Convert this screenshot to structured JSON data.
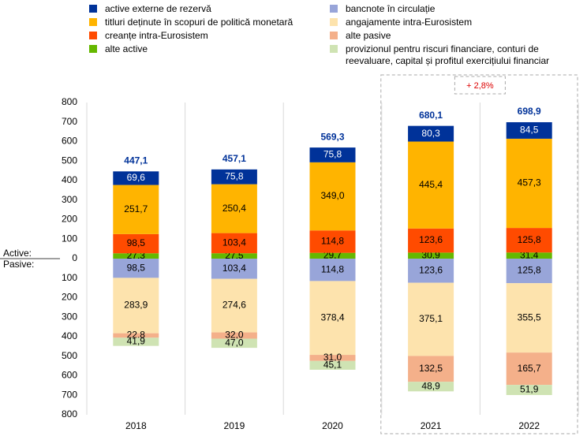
{
  "chart_data": {
    "type": "stacked-bar",
    "categories": [
      "2018",
      "2019",
      "2020",
      "2021",
      "2022"
    ],
    "series": [
      {
        "name": "alte active",
        "color": "#65b800",
        "values": [
          27.3,
          27.5,
          29.7,
          30.9,
          31.4
        ],
        "value_labels": [
          "27,3",
          "27,5",
          "29,7",
          "30,9",
          "31,4"
        ]
      },
      {
        "name": "creanțe intra-Eurosistem",
        "color": "#ff4b00",
        "values": [
          98.5,
          103.4,
          114.8,
          123.6,
          125.8
        ],
        "value_labels": [
          "98,5",
          "103,4",
          "114,8",
          "123,6",
          "125,8"
        ]
      },
      {
        "name": "titluri deținute în scopuri de politică monetară",
        "color": "#ffb400",
        "values": [
          251.7,
          250.4,
          349.0,
          445.4,
          457.3
        ],
        "value_labels": [
          "251,7",
          "250,4",
          "349,0",
          "445,4",
          "457,3"
        ]
      },
      {
        "name": "active externe de rezervă",
        "color": "#003299",
        "values": [
          69.6,
          75.8,
          75.8,
          80.3,
          84.5
        ],
        "value_labels": [
          "69,6",
          "75,8",
          "75,8",
          "80,3",
          "84,5"
        ]
      },
      {
        "name": "bancnote în circulație",
        "color": "#98a5d9",
        "values": [
          -98.5,
          -103.4,
          -114.8,
          -123.6,
          -125.8
        ],
        "value_labels": [
          "98,5",
          "103,4",
          "114,8",
          "123,6",
          "125,8"
        ]
      },
      {
        "name": "angajamente intra-Eurosistem",
        "color": "#fde3ad",
        "values": [
          -283.9,
          -274.6,
          -378.4,
          -375.1,
          -355.5
        ],
        "value_labels": [
          "283,9",
          "274,6",
          "378,4",
          "375,1",
          "355,5"
        ]
      },
      {
        "name": "alte pasive",
        "color": "#f4b08a",
        "values": [
          -22.8,
          -32.0,
          -31.0,
          -132.5,
          -165.7
        ],
        "value_labels": [
          "22,8",
          "32,0",
          "31,0",
          "132,5",
          "165,7"
        ]
      },
      {
        "name": "provizionul pentru riscuri financiare, conturi de reevaluare, capital și profitul exercițiului financiar",
        "color": "#cfe3b3",
        "values": [
          -41.9,
          -47.0,
          -45.1,
          -48.9,
          -51.9
        ],
        "value_labels": [
          "41,9",
          "47,0",
          "45,1",
          "48,9",
          "51,9"
        ]
      }
    ],
    "legend_order": [
      3,
      4,
      2,
      5,
      1,
      6,
      0,
      7
    ],
    "totals": [
      447.1,
      457.1,
      569.3,
      680.1,
      698.9
    ],
    "totals_labels": [
      "447,1",
      "457,1",
      "569,3",
      "680,1",
      "698,9"
    ],
    "zero_labels": [
      "Active:",
      "Pasive:"
    ],
    "annotation": "+ 2,8%",
    "highlight": [
      3,
      4
    ],
    "ylim": [
      -800,
      800
    ],
    "yticks": [
      {
        "value": -800,
        "label": "800"
      },
      {
        "value": -700,
        "label": "700"
      },
      {
        "value": -600,
        "label": "600"
      },
      {
        "value": -500,
        "label": "500"
      },
      {
        "value": -400,
        "label": "400"
      },
      {
        "value": -300,
        "label": "300"
      },
      {
        "value": -200,
        "label": "200"
      },
      {
        "value": -100,
        "label": "100"
      },
      0,
      100,
      200,
      300,
      400,
      500,
      600,
      700,
      800
    ],
    "grid": "vertical"
  }
}
